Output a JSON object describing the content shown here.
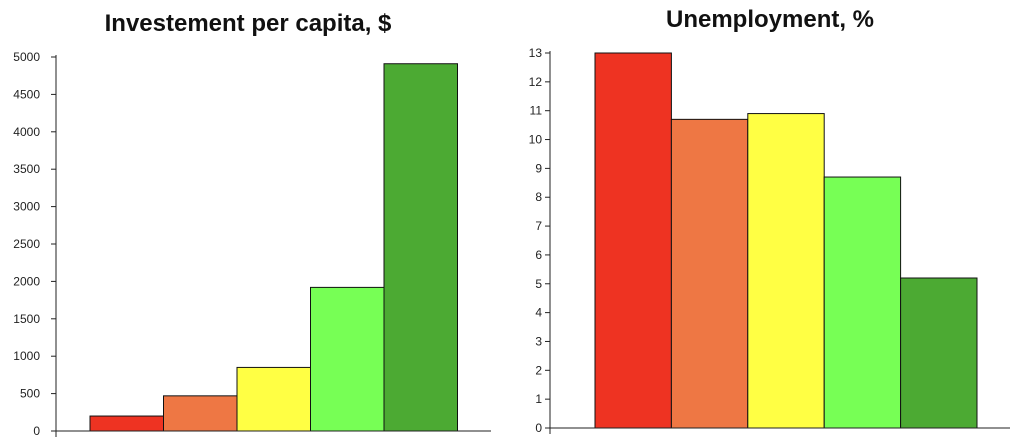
{
  "chart_data": [
    {
      "type": "bar",
      "title": "Investement per capita, $",
      "xlabel": "",
      "ylabel": "",
      "ylim": [
        0,
        5000
      ],
      "yticks": [
        "0",
        "500",
        "1000",
        "1500",
        "2000",
        "2500",
        "3000",
        "3500",
        "4000",
        "4500",
        "5000"
      ],
      "values": [
        200,
        470,
        850,
        1920,
        4910
      ],
      "colors": [
        "#ee3322",
        "#ee7744",
        "#ffff44",
        "#77ff55",
        "#4caa33"
      ],
      "grid": false,
      "legend": "none"
    },
    {
      "type": "bar",
      "title": "Unemployment, %",
      "xlabel": "",
      "ylabel": "",
      "ylim": [
        0,
        13
      ],
      "yticks": [
        "0",
        "1",
        "2",
        "3",
        "4",
        "5",
        "6",
        "7",
        "8",
        "9",
        "10",
        "11",
        "12",
        "13"
      ],
      "values": [
        13,
        10.7,
        10.9,
        8.7,
        5.2
      ],
      "colors": [
        "#ee3322",
        "#ee7744",
        "#ffff44",
        "#77ff55",
        "#4caa33"
      ],
      "grid": false,
      "legend": "none"
    }
  ]
}
